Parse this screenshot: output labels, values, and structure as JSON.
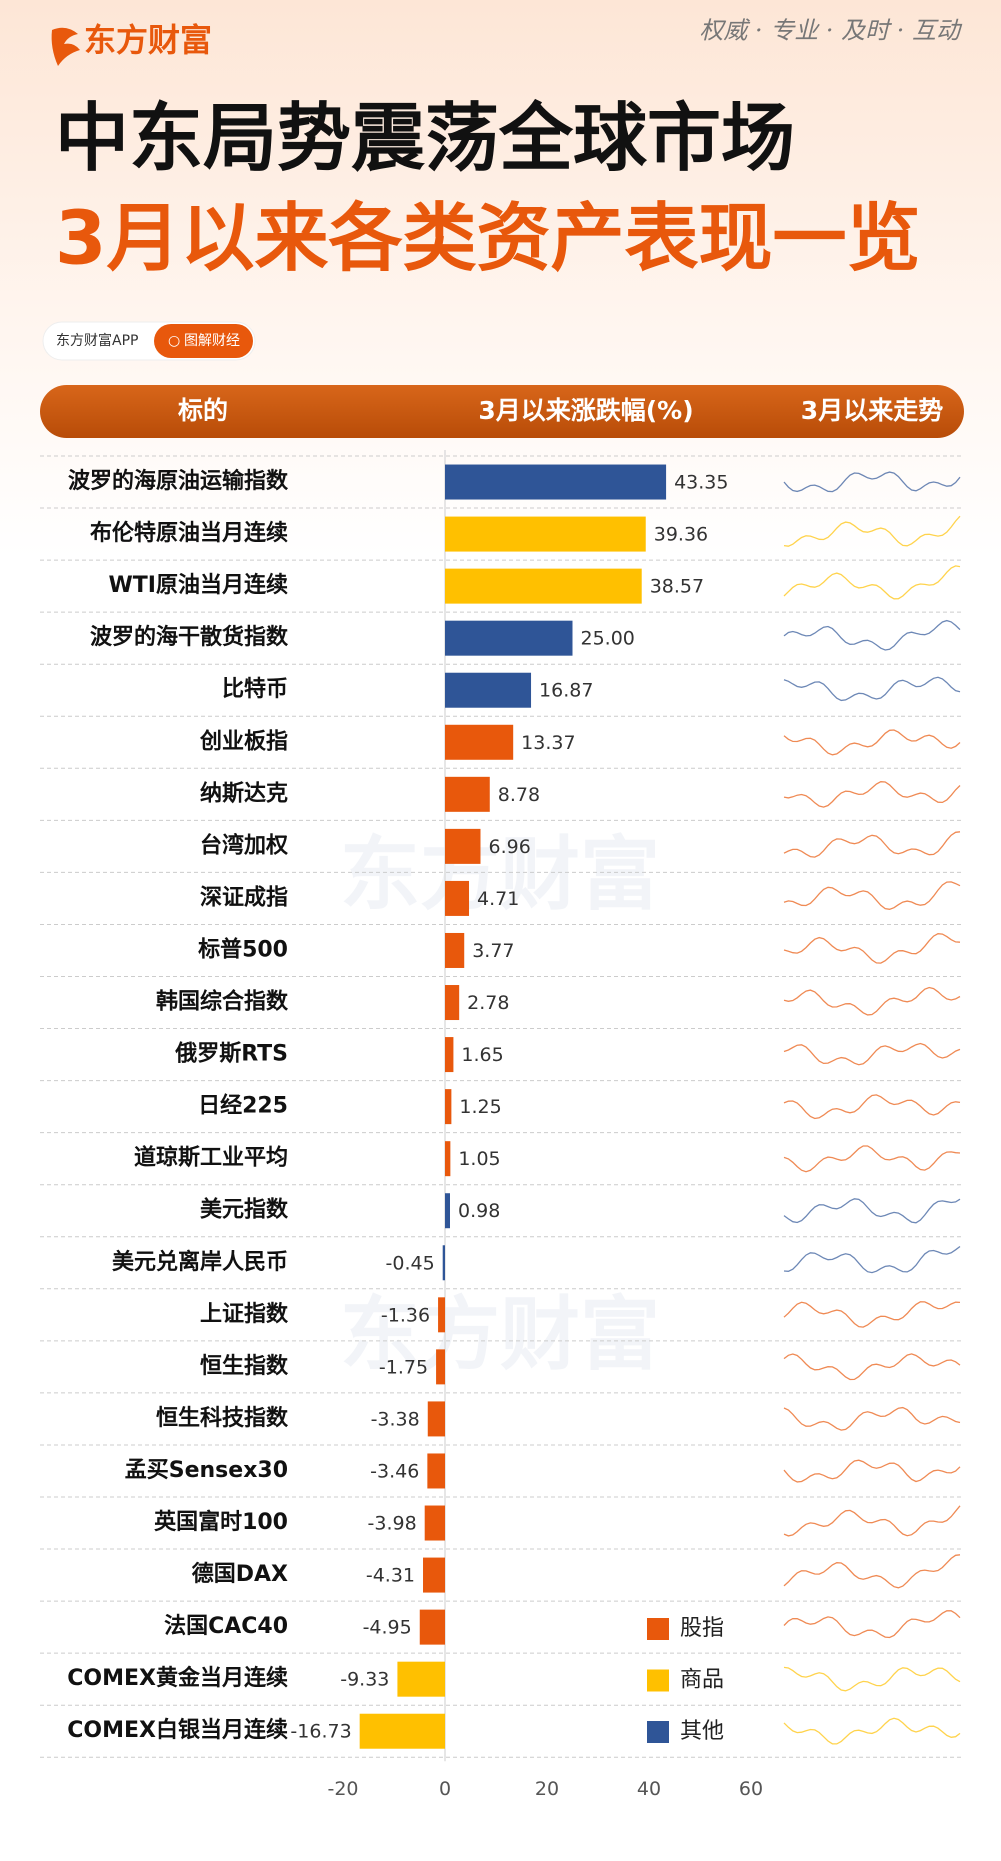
{
  "header": {
    "brand": "东方财富",
    "slogan": "权威 · 专业 · 及时 · 互动",
    "title_line1": "中东局势震荡全球市场",
    "title_line2": "3月以来各类资产表现一览",
    "badge": "东方财富APP",
    "tag": "图解财经",
    "watermark": "东方财富"
  },
  "table": {
    "columns": [
      "标的",
      "3月以来涨跌幅(%)",
      "3月以来走势"
    ]
  },
  "chart_data": {
    "type": "bar",
    "orientation": "horizontal",
    "categories": [
      "波罗的海原油运输指数",
      "布伦特原油当月连续",
      "WTI原油当月连续",
      "波罗的海干散货指数",
      "比特币",
      "创业板指",
      "纳斯达克",
      "台湾加权",
      "深证成指",
      "标普500",
      "韩国综合指数",
      "俄罗斯RTS",
      "日经225",
      "道琼斯工业平均",
      "美元指数",
      "美元兑离岸人民币",
      "上证指数",
      "恒生指数",
      "恒生科技指数",
      "孟买Sensex30",
      "英国富时100",
      "德国DAX",
      "法国CAC40",
      "COMEX黄金当月连续",
      "COMEX白银当月连续"
    ],
    "series": [
      {
        "name": "股指",
        "color": "#e8580c",
        "values": [
          null,
          null,
          null,
          null,
          null,
          13.37,
          8.78,
          6.96,
          4.71,
          3.77,
          2.78,
          1.65,
          1.25,
          1.05,
          null,
          null,
          -1.36,
          -1.75,
          -3.38,
          -3.46,
          -3.98,
          -4.31,
          -4.95,
          null,
          null
        ],
        "value_labels": [
          null,
          null,
          null,
          null,
          null,
          "13.37",
          "8.78",
          "6.96",
          "4.71",
          "3.77",
          "2.78",
          "1.65",
          "1.25",
          "1.05",
          null,
          null,
          "-1.36",
          "-1.75",
          "-3.38",
          "-3.46",
          "-3.98",
          "-4.31",
          "-4.95",
          null,
          null
        ]
      },
      {
        "name": "商品",
        "color": "#ffc000",
        "values": [
          null,
          39.36,
          38.57,
          null,
          null,
          null,
          null,
          null,
          null,
          null,
          null,
          null,
          null,
          null,
          null,
          null,
          null,
          null,
          null,
          null,
          null,
          null,
          null,
          -9.33,
          -16.73
        ],
        "value_labels": [
          null,
          "39.36",
          "38.57",
          null,
          null,
          null,
          null,
          null,
          null,
          null,
          null,
          null,
          null,
          null,
          null,
          null,
          null,
          null,
          null,
          null,
          null,
          null,
          null,
          "-9.33",
          "-16.73"
        ]
      },
      {
        "name": "其他",
        "color": "#2f5597",
        "values": [
          43.35,
          null,
          null,
          25,
          16.87,
          null,
          null,
          null,
          null,
          null,
          null,
          null,
          null,
          null,
          0.98,
          -0.45,
          null,
          null,
          null,
          null,
          null,
          null,
          null,
          null,
          null
        ],
        "value_labels": [
          "43.35",
          null,
          null,
          "25.00",
          "16.87",
          null,
          null,
          null,
          null,
          null,
          null,
          null,
          null,
          null,
          "0.98",
          "-0.45",
          null,
          null,
          null,
          null,
          null,
          null,
          null,
          null,
          null
        ]
      }
    ],
    "xlim": [
      -20,
      60
    ],
    "xticks": [
      -20,
      0,
      20,
      40,
      60
    ],
    "grid": false,
    "legend": "lower right"
  }
}
